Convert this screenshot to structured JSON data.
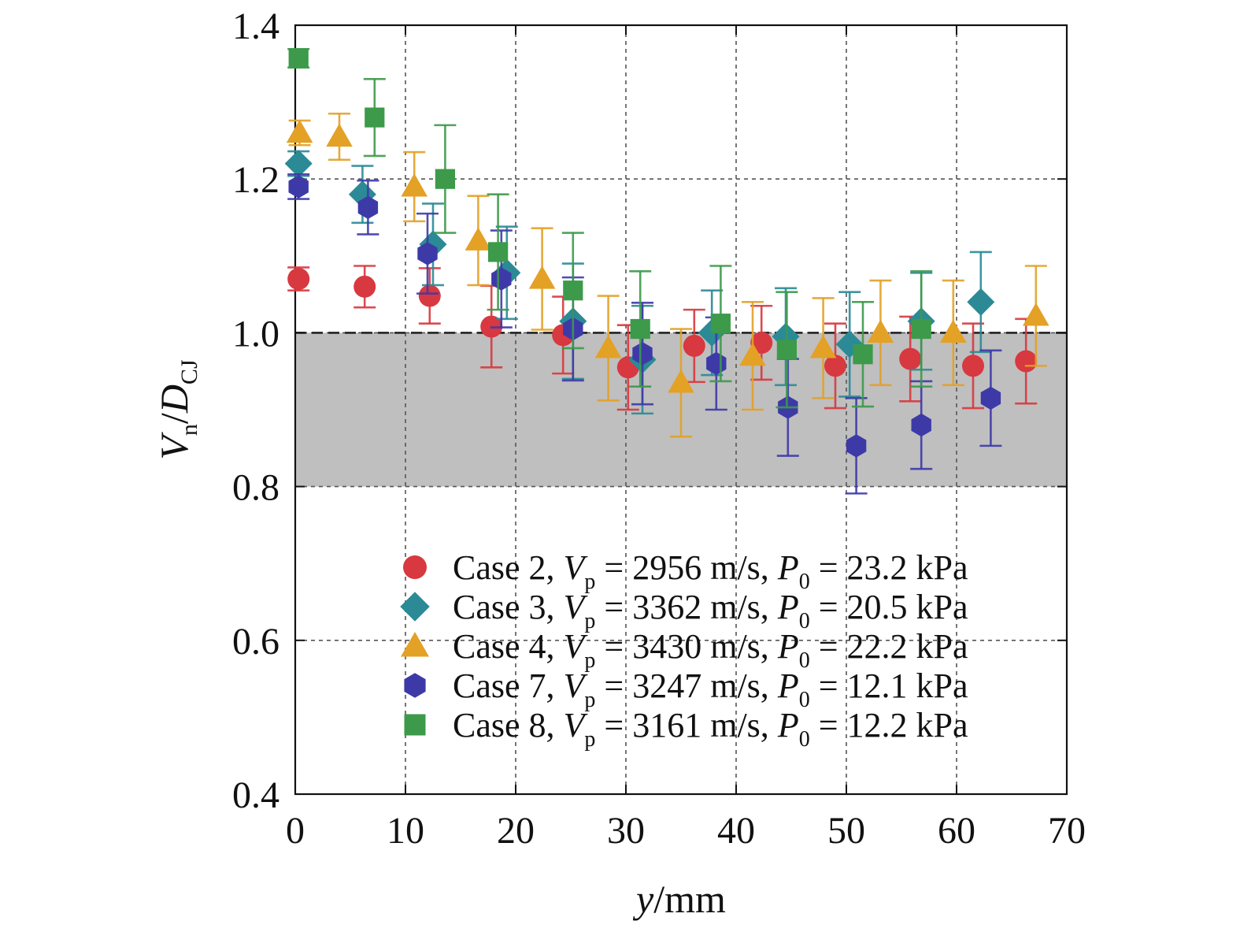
{
  "chart_data": {
    "type": "scatter",
    "xlabel": {
      "main": "y",
      "unit": "/mm"
    },
    "ylabel": {
      "main": "V",
      "sub": "n",
      "sep": "/",
      "main2": "D",
      "sub2": "CJ"
    },
    "xlim": [
      0,
      70
    ],
    "ylim": [
      0.4,
      1.4
    ],
    "x_ticks": [
      "0",
      "10",
      "20",
      "30",
      "40",
      "50",
      "60",
      "70"
    ],
    "y_ticks": [
      "0.4",
      "0.6",
      "0.8",
      "1.0",
      "1.2",
      "1.4"
    ],
    "grid": "dashed",
    "shaded_band": [
      0.8,
      1.0
    ],
    "reference_line": 1.0,
    "legend_position": "bottom-right",
    "series": [
      {
        "name": "Case 2",
        "legend_text": {
          "prefix": "Case 2, ",
          "v": "V",
          "vsub": "p",
          "vval": " = 2956 m/s, ",
          "p": "P",
          "psub": "0",
          "pval": " = 23.2 kPa"
        },
        "marker": "circle",
        "color": "#d8383f",
        "points": [
          [
            0.3,
            1.07,
            0.015
          ],
          [
            6.3,
            1.06,
            0.027
          ],
          [
            12.2,
            1.048,
            0.036
          ],
          [
            17.8,
            1.008,
            0.053
          ],
          [
            24.3,
            0.997,
            0.05
          ],
          [
            30.2,
            0.955,
            0.055
          ],
          [
            36.2,
            0.983,
            0.047
          ],
          [
            42.3,
            0.987,
            0.048
          ],
          [
            49.0,
            0.957,
            0.055
          ],
          [
            55.8,
            0.966,
            0.055
          ],
          [
            61.5,
            0.957,
            0.055
          ],
          [
            66.3,
            0.963,
            0.055
          ]
        ]
      },
      {
        "name": "Case 3",
        "legend_text": {
          "prefix": "Case 3, ",
          "v": "V",
          "vsub": "p",
          "vval": " = 3362 m/s, ",
          "p": "P",
          "psub": "0",
          "pval": " = 20.5 kPa"
        },
        "marker": "diamond",
        "color": "#2b8a96",
        "points": [
          [
            0.3,
            1.22,
            0.016
          ],
          [
            6.1,
            1.18,
            0.037
          ],
          [
            12.5,
            1.115,
            0.053
          ],
          [
            19.2,
            1.078,
            0.06
          ],
          [
            25.2,
            1.015,
            0.075
          ],
          [
            31.5,
            0.965,
            0.07
          ],
          [
            37.8,
            1.0,
            0.055
          ],
          [
            44.5,
            0.995,
            0.063
          ],
          [
            50.3,
            0.985,
            0.068
          ],
          [
            56.8,
            1.015,
            0.063
          ],
          [
            62.2,
            1.04,
            0.065
          ]
        ]
      },
      {
        "name": "Case 4",
        "legend_text": {
          "prefix": "Case 4, ",
          "v": "V",
          "vsub": "p",
          "vval": " = 3430 m/s, ",
          "p": "P",
          "psub": "0",
          "pval": " = 22.2 kPa"
        },
        "marker": "triangle",
        "color": "#e3a126",
        "points": [
          [
            0.4,
            1.26,
            0.016
          ],
          [
            4.0,
            1.255,
            0.03
          ],
          [
            10.8,
            1.19,
            0.045
          ],
          [
            16.6,
            1.12,
            0.058
          ],
          [
            22.4,
            1.07,
            0.066
          ],
          [
            28.4,
            0.98,
            0.068
          ],
          [
            35.0,
            0.935,
            0.07
          ],
          [
            41.5,
            0.97,
            0.07
          ],
          [
            47.9,
            0.98,
            0.065
          ],
          [
            53.1,
            1.0,
            0.068
          ],
          [
            59.7,
            1.0,
            0.068
          ],
          [
            67.2,
            1.022,
            0.065
          ]
        ]
      },
      {
        "name": "Case 7",
        "legend_text": {
          "prefix": "Case 7, ",
          "v": "V",
          "vsub": "p",
          "vval": " = 3247 m/s, ",
          "p": "P",
          "psub": "0",
          "pval": " = 12.1 kPa"
        },
        "marker": "hexagon",
        "color": "#3d3aa8",
        "points": [
          [
            0.3,
            1.19,
            0.016
          ],
          [
            6.6,
            1.163,
            0.035
          ],
          [
            12.0,
            1.103,
            0.052
          ],
          [
            18.7,
            1.07,
            0.063
          ],
          [
            25.2,
            1.005,
            0.067
          ],
          [
            31.5,
            0.973,
            0.066
          ],
          [
            38.2,
            0.96,
            0.06
          ],
          [
            44.7,
            0.903,
            0.063
          ],
          [
            50.9,
            0.853,
            0.062
          ],
          [
            56.8,
            0.88,
            0.057
          ],
          [
            63.1,
            0.915,
            0.062
          ]
        ]
      },
      {
        "name": "Case 8",
        "legend_text": {
          "prefix": "Case 8, ",
          "v": "V",
          "vsub": "p",
          "vval": " = 3161 m/s, ",
          "p": "P",
          "psub": "0",
          "pval": " = 12.2 kPa"
        },
        "marker": "square",
        "color": "#3c9a4a",
        "points": [
          [
            0.3,
            1.357,
            0.012
          ],
          [
            7.2,
            1.28,
            0.05
          ],
          [
            13.6,
            1.2,
            0.07
          ],
          [
            18.4,
            1.105,
            0.075
          ],
          [
            25.2,
            1.055,
            0.075
          ],
          [
            31.3,
            1.005,
            0.075
          ],
          [
            38.6,
            1.012,
            0.075
          ],
          [
            44.6,
            0.978,
            0.075
          ],
          [
            51.5,
            0.972,
            0.068
          ],
          [
            56.8,
            1.005,
            0.075
          ]
        ]
      }
    ]
  }
}
